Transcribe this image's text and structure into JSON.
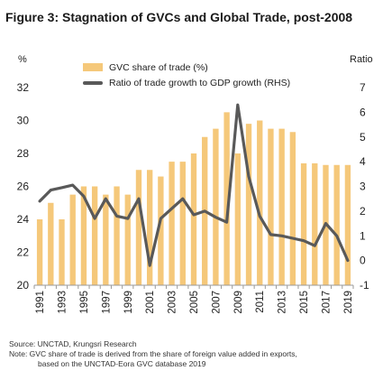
{
  "title": "Figure 3: Stagnation of GVCs and Global Trade, post-2008",
  "chart_data": {
    "type": "bar",
    "x": [
      1991,
      1992,
      1993,
      1994,
      1995,
      1996,
      1997,
      1998,
      1999,
      2000,
      2001,
      2002,
      2003,
      2004,
      2005,
      2006,
      2007,
      2008,
      2009,
      2010,
      2011,
      2012,
      2013,
      2014,
      2015,
      2016,
      2017,
      2018,
      2019
    ],
    "x_tick_labels": [
      "1991",
      "1993",
      "1995",
      "1997",
      "1999",
      "2001",
      "2003",
      "2005",
      "2007",
      "2009",
      "2011",
      "2013",
      "2015",
      "2017",
      "2019"
    ],
    "series": [
      {
        "name": "GVC share of trade (%)",
        "type": "bar",
        "axis": "left",
        "color": "#F5C87A",
        "values": [
          24.0,
          25.0,
          24.0,
          25.5,
          26.0,
          26.0,
          25.5,
          26.0,
          25.5,
          27.0,
          27.0,
          26.6,
          27.5,
          27.5,
          28.0,
          29.0,
          29.5,
          30.5,
          28.0,
          29.8,
          30.0,
          29.5,
          29.5,
          29.3,
          27.4,
          27.4,
          27.3,
          27.3,
          27.3
        ]
      },
      {
        "name": "Ratio of trade growth to GDP growth (RHS)",
        "type": "line",
        "axis": "right",
        "color": "#595959",
        "values": [
          2.4,
          2.85,
          2.95,
          3.05,
          2.6,
          1.7,
          2.5,
          1.8,
          1.7,
          2.5,
          -0.2,
          1.7,
          2.1,
          2.5,
          1.85,
          2.0,
          1.75,
          1.55,
          6.3,
          3.4,
          1.8,
          1.05,
          1.0,
          0.9,
          0.8,
          0.6,
          1.5,
          1.0,
          0.0
        ]
      }
    ],
    "y_left": {
      "label": "%",
      "min": 20,
      "max": 32,
      "ticks": [
        "20",
        "22",
        "24",
        "26",
        "28",
        "30",
        "32"
      ]
    },
    "y_right": {
      "label": "Ratio",
      "min": -1,
      "max": 7,
      "ticks": [
        "-1",
        "0",
        "1",
        "2",
        "3",
        "4",
        "5",
        "6",
        "7"
      ]
    },
    "legend": "top-left",
    "grid": false
  },
  "footer": {
    "source": "Source: UNCTAD, Krungsri Research",
    "note_line1": "Note: GVC share of trade is derived from the share of foreign value added in exports,",
    "note_line2": "based on the UNCTAD-Eora GVC database 2019"
  }
}
